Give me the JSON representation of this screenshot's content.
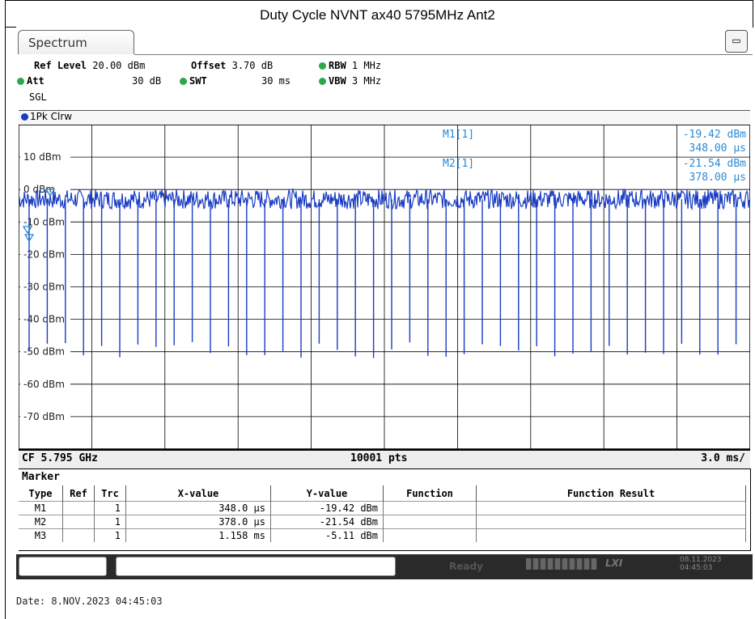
{
  "title": "Duty Cycle NVNT ax40 5795MHz Ant2",
  "tab": {
    "label": "Spectrum"
  },
  "settings": {
    "ref_level_label": "Ref Level",
    "ref_level_value": "20.00 dBm",
    "offset_label": "Offset",
    "offset_value": "3.70 dB",
    "rbw_label": "RBW",
    "rbw_value": "1 MHz",
    "att_label": "Att",
    "att_value": "30 dB",
    "swt_label": "SWT",
    "swt_value": "30 ms",
    "vbw_label": "VBW",
    "vbw_value": "3 MHz",
    "mode": "SGL"
  },
  "trace": {
    "label": "1Pk Clrw"
  },
  "plot": {
    "y_labels": [
      "10 dBm",
      "0 dBm",
      "-10 dBm",
      "-20 dBm",
      "-30 dBm",
      "-40 dBm",
      "-50 dBm",
      "-60 dBm",
      "-70 dBm"
    ],
    "marker_readout": [
      {
        "name": "M1[1]",
        "level": "-19.42 dBm",
        "time": "348.00 µs"
      },
      {
        "name": "M2[1]",
        "level": "-21.54 dBm",
        "time": "378.00 µs"
      }
    ],
    "trace_color": "#1a3cc4",
    "readout_color": "#2a8ad4"
  },
  "status": {
    "cf": "CF 5.795 GHz",
    "points": "10001 pts",
    "span": "3.0 ms/"
  },
  "marker_table": {
    "title": "Marker",
    "headers": [
      "Type",
      "Ref",
      "Trc",
      "X-value",
      "Y-value",
      "Function",
      "Function Result"
    ],
    "rows": [
      {
        "type": "M1",
        "ref": "",
        "trc": "1",
        "x": "348.0 µs",
        "y": "-19.42 dBm",
        "func": "",
        "result": ""
      },
      {
        "type": "M2",
        "ref": "",
        "trc": "1",
        "x": "378.0 µs",
        "y": "-21.54 dBm",
        "func": "",
        "result": ""
      },
      {
        "type": "M3",
        "ref": "",
        "trc": "1",
        "x": "1.158 ms",
        "y": "-5.11 dBm",
        "func": "",
        "result": ""
      }
    ]
  },
  "bottom_bar": {
    "ready": "Ready",
    "logo": "LXI",
    "date": "08.11.2023",
    "time": "04:45:03"
  },
  "footer": {
    "date": "Date: 8.NOV.2023  04:45:03"
  }
}
